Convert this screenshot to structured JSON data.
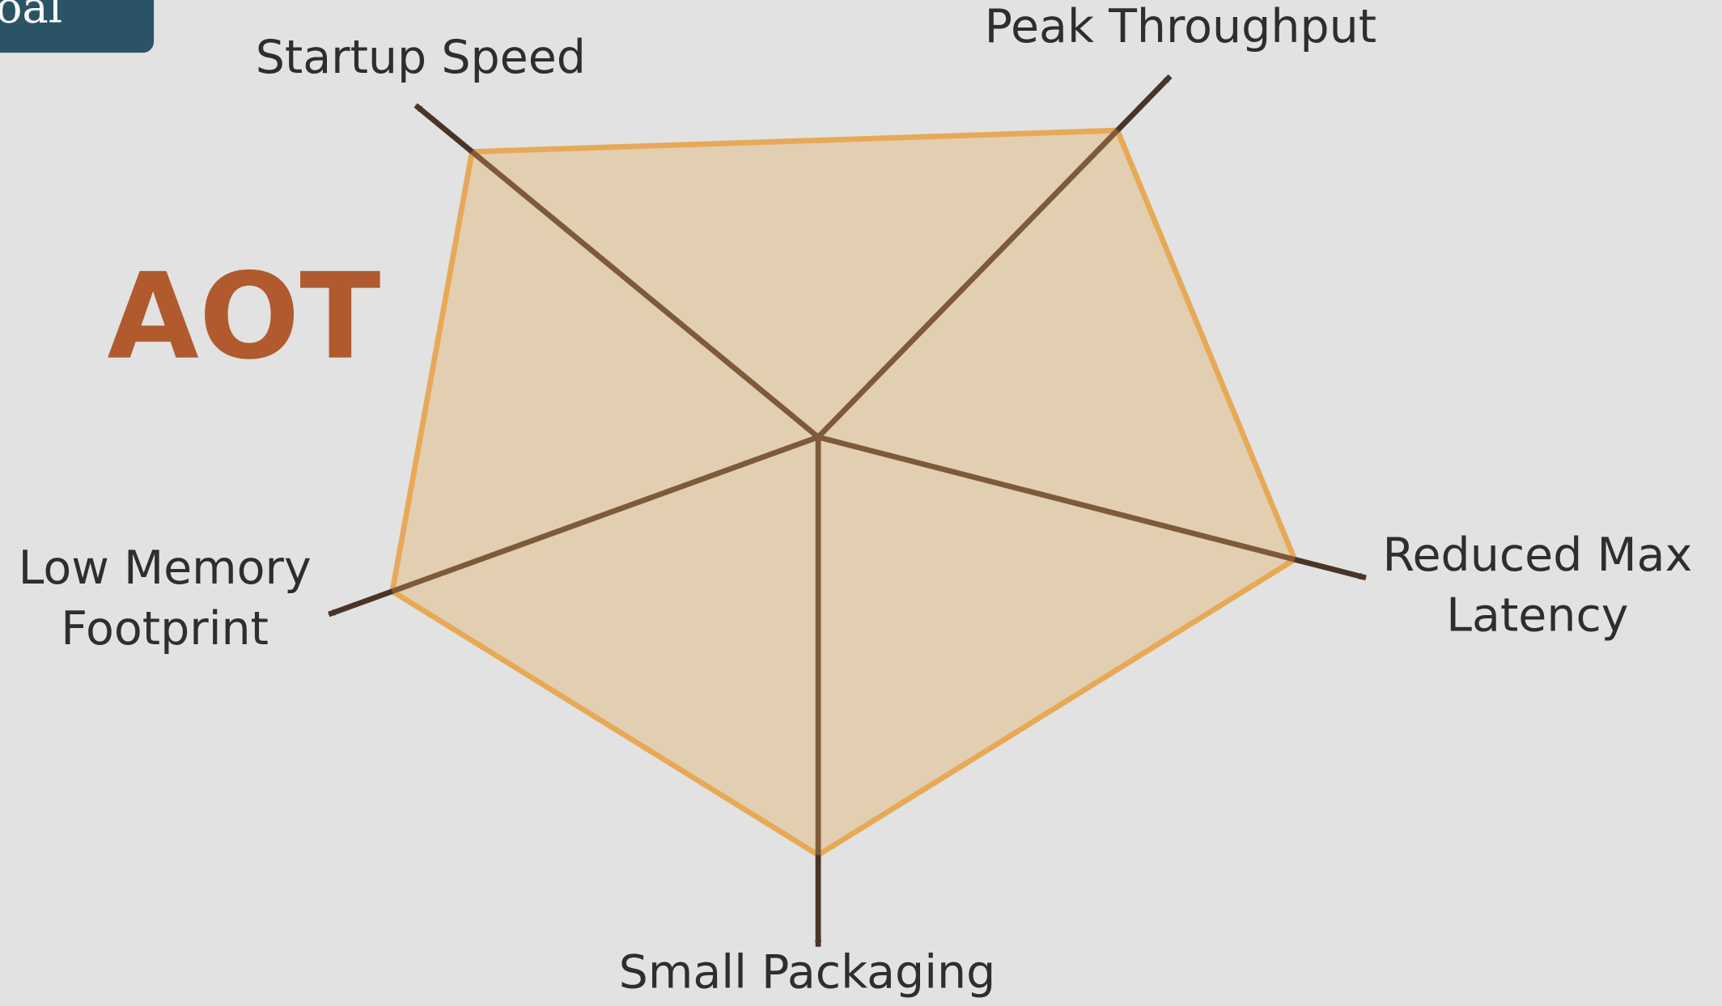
{
  "header_button": "oal",
  "chart_data": {
    "type": "radar",
    "title": "AOT",
    "categories": [
      [
        "Startup Speed"
      ],
      [
        "Peak Throughput"
      ],
      [
        "Reduced Max",
        "Latency"
      ],
      [
        "Small Packaging"
      ],
      [
        "Low Memory",
        "Footprint"
      ]
    ],
    "values": [
      86,
      85,
      87,
      82,
      87
    ],
    "rlim": [
      0,
      100
    ],
    "color": "#e8a956",
    "fill": "#e2cfb1",
    "axis_color": "#7d5a3a"
  }
}
